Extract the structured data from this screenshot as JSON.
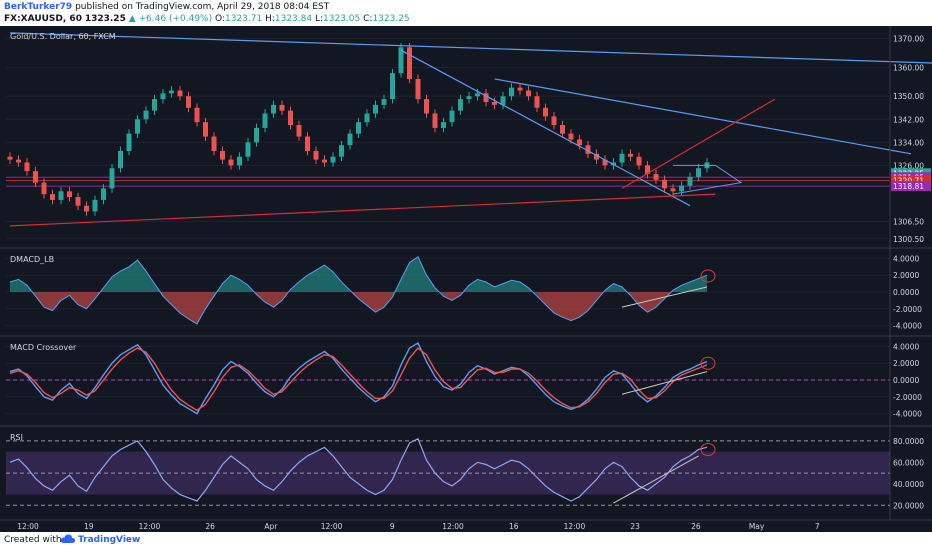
{
  "header": {
    "author": "BerkTurker79",
    "published": "published on TradingView.com, April 29, 2018 08:04 EST",
    "symbol": "FX:XAUUSD, 60",
    "last": "1323.25",
    "change": "+6.46 (+0.49%)",
    "o_label": "O:",
    "o_value": "1323.71",
    "h_label": "H:",
    "h_value": "1323.84",
    "l_label": "L:",
    "l_value": "1323.05",
    "c_label": "C:",
    "c_value": "1323.25"
  },
  "footer": {
    "created_with": "Created with",
    "brand": "TradingView"
  },
  "colors": {
    "background": "#131722",
    "bull": "#26a69a",
    "bear": "#ef5350",
    "trendline_blue": "#5b9cf6",
    "trendline_red": "#d32f2f",
    "purple": "#9c27b0",
    "macd_line": "#5b9cf6",
    "signal_line": "#ef5350",
    "rsi_line": "#8fa7f0",
    "rsi_band": "#3c2a5a",
    "circle": "#e53935"
  },
  "chart_data": [
    {
      "type": "candlestick",
      "title": "Gold/U.S. Dollar, 60, FXCM",
      "ylim": [
        1298,
        1373
      ],
      "y_ticks": [
        "1370.00",
        "1360.00",
        "1350.00",
        "1342.00",
        "1334.00",
        "1326.00",
        "1306.50",
        "1300.50"
      ],
      "price_badges": [
        {
          "label": "1323.25",
          "value": 1323.25,
          "color": "#26a69a"
        },
        {
          "label": "1321.85",
          "value": 1321.85,
          "color": "#9c27b0"
        },
        {
          "label": "1320.71",
          "value": 1320.71,
          "color": "#d32f2f"
        },
        {
          "label": "1318.81",
          "value": 1318.81,
          "color": "#9c27b0"
        }
      ],
      "x_ticks": [
        "12:00",
        "19",
        "12:00",
        "26",
        "Apr",
        "12:00",
        "9",
        "12:00",
        "16",
        "12:00",
        "23",
        "26",
        "May",
        "7"
      ],
      "close_series": [
        1328,
        1327,
        1324,
        1320,
        1316,
        1314,
        1317,
        1315,
        1312,
        1310,
        1314,
        1318,
        1325,
        1331,
        1337,
        1342,
        1345,
        1349,
        1351,
        1352,
        1350,
        1346,
        1341,
        1336,
        1331,
        1328,
        1326,
        1329,
        1334,
        1339,
        1344,
        1347,
        1345,
        1340,
        1336,
        1331,
        1328,
        1327,
        1329,
        1333,
        1337,
        1341,
        1344,
        1347,
        1349,
        1358,
        1367,
        1356,
        1349,
        1344,
        1339,
        1341,
        1345,
        1349,
        1350,
        1351,
        1348,
        1347,
        1350,
        1353,
        1352,
        1350,
        1346,
        1343,
        1340,
        1337,
        1335,
        1333,
        1330,
        1328,
        1326,
        1327,
        1330,
        1329,
        1326,
        1323,
        1321,
        1318,
        1317,
        1319,
        1322,
        1325,
        1327
      ],
      "series_end_index": 82,
      "horizontal_levels": [
        1321.85,
        1320.71,
        1318.81
      ],
      "trendlines": [
        {
          "color": "blue",
          "from": [
            0,
            1372
          ],
          "to": [
            114,
            1361
          ]
        },
        {
          "color": "blue",
          "from": [
            46,
            1366
          ],
          "to": [
            80,
            1312
          ]
        },
        {
          "color": "blue",
          "from": [
            57,
            1356
          ],
          "to": [
            106,
            1330
          ]
        },
        {
          "color": "red",
          "from": [
            0,
            1305
          ],
          "to": [
            83,
            1316
          ]
        },
        {
          "color": "red",
          "from": [
            72,
            1318
          ],
          "to": [
            90,
            1349
          ]
        }
      ]
    },
    {
      "type": "area",
      "title": "DMACD_LB",
      "ylim": [
        -5,
        5
      ],
      "y_ticks": [
        "4.0000",
        "2.0000",
        "0.0000",
        "-2.0000",
        "-4.0000"
      ],
      "values": [
        1.2,
        1.5,
        0.8,
        -0.5,
        -1.8,
        -2.2,
        -1.0,
        -0.4,
        -1.5,
        -2.0,
        -0.8,
        0.5,
        1.8,
        2.5,
        3.0,
        3.8,
        2.5,
        1.0,
        -0.5,
        -1.5,
        -2.5,
        -3.2,
        -3.8,
        -2.0,
        -0.5,
        1.0,
        2.0,
        1.5,
        0.8,
        -0.3,
        -1.2,
        -1.8,
        -1.0,
        0.3,
        1.2,
        2.0,
        2.6,
        3.2,
        2.4,
        1.2,
        0.2,
        -0.8,
        -1.6,
        -2.4,
        -1.8,
        -0.6,
        1.5,
        3.5,
        4.2,
        2.0,
        0.5,
        -0.5,
        -1.0,
        -0.4,
        0.8,
        1.5,
        1.2,
        0.6,
        1.0,
        1.4,
        1.2,
        0.5,
        -0.5,
        -1.5,
        -2.5,
        -3.0,
        -3.4,
        -3.0,
        -2.2,
        -1.0,
        0.2,
        1.0,
        0.6,
        -0.4,
        -1.6,
        -2.4,
        -1.8,
        -0.8,
        0.2,
        0.8,
        1.2,
        1.6,
        2.0
      ],
      "series_end_index": 82
    },
    {
      "type": "line",
      "title": "MACD Crossover",
      "ylim": [
        -5,
        5
      ],
      "y_ticks": [
        "4.0000",
        "2.0000",
        "0.0000",
        "-2.0000",
        "-4.0000"
      ],
      "series": [
        {
          "values": [
            1.0,
            1.3,
            0.5,
            -0.8,
            -2.0,
            -2.4,
            -1.2,
            -0.4,
            -1.6,
            -2.2,
            -0.9,
            0.6,
            2.0,
            3.0,
            3.6,
            4.2,
            3.0,
            1.2,
            -0.6,
            -1.8,
            -2.8,
            -3.4,
            -4.0,
            -2.2,
            -0.6,
            1.2,
            2.2,
            1.6,
            0.8,
            -0.4,
            -1.4,
            -2.0,
            -1.1,
            0.4,
            1.4,
            2.2,
            2.8,
            3.4,
            2.6,
            1.3,
            0.2,
            -0.9,
            -1.8,
            -2.6,
            -2.0,
            -0.7,
            1.8,
            3.8,
            4.4,
            2.2,
            0.4,
            -0.8,
            -1.2,
            -0.5,
            0.9,
            1.7,
            1.3,
            0.7,
            1.1,
            1.5,
            1.3,
            0.5,
            -0.6,
            -1.7,
            -2.6,
            -3.1,
            -3.5,
            -3.1,
            -2.3,
            -1.1,
            0.3,
            1.1,
            0.7,
            -0.5,
            -1.8,
            -2.6,
            -1.9,
            -0.9,
            0.3,
            0.9,
            1.3,
            1.8,
            2.2
          ]
        },
        {
          "values": [
            0.8,
            1.1,
            0.7,
            -0.3,
            -1.5,
            -2.1,
            -1.6,
            -0.9,
            -1.2,
            -1.8,
            -1.3,
            0.0,
            1.3,
            2.4,
            3.2,
            3.8,
            3.3,
            2.0,
            0.3,
            -1.2,
            -2.3,
            -3.0,
            -3.6,
            -2.9,
            -1.4,
            0.3,
            1.5,
            1.8,
            1.1,
            0.1,
            -1.0,
            -1.7,
            -1.4,
            -0.3,
            0.8,
            1.7,
            2.4,
            3.0,
            2.8,
            1.8,
            0.7,
            -0.4,
            -1.4,
            -2.2,
            -2.2,
            -1.3,
            0.6,
            2.6,
            3.8,
            3.0,
            1.2,
            -0.2,
            -1.0,
            -0.9,
            0.2,
            1.2,
            1.4,
            0.9,
            0.9,
            1.3,
            1.3,
            0.8,
            -0.1,
            -1.2,
            -2.1,
            -2.8,
            -3.3,
            -3.2,
            -2.6,
            -1.6,
            -0.3,
            0.7,
            0.8,
            0.1,
            -1.2,
            -2.2,
            -2.1,
            -1.3,
            -0.2,
            0.6,
            1.0,
            1.4,
            1.8
          ]
        }
      ],
      "series_end_index": 82
    },
    {
      "type": "line",
      "title": "RSI",
      "ylim": [
        10,
        92
      ],
      "y_ticks": [
        "80.0000",
        "60.0000",
        "40.0000",
        "20.0000"
      ],
      "band": [
        30,
        70
      ],
      "dashed_levels": [
        80,
        50,
        20
      ],
      "values": [
        60,
        63,
        55,
        45,
        38,
        34,
        42,
        48,
        38,
        33,
        46,
        56,
        66,
        72,
        76,
        80,
        70,
        58,
        44,
        36,
        30,
        27,
        24,
        34,
        46,
        58,
        66,
        60,
        54,
        44,
        38,
        34,
        42,
        52,
        60,
        66,
        70,
        74,
        66,
        56,
        46,
        40,
        34,
        30,
        34,
        44,
        62,
        78,
        82,
        62,
        50,
        42,
        38,
        44,
        54,
        60,
        58,
        54,
        58,
        62,
        60,
        54,
        46,
        38,
        32,
        28,
        24,
        28,
        36,
        44,
        54,
        60,
        56,
        46,
        38,
        34,
        40,
        46,
        56,
        62,
        66,
        72,
        74
      ],
      "series_end_index": 82
    }
  ]
}
